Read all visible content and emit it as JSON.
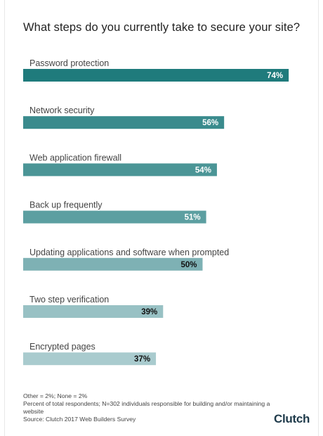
{
  "title": "What steps do you currently take to secure your site?",
  "chart_data": {
    "type": "bar",
    "orientation": "horizontal",
    "title": "What steps do you currently take to secure your site?",
    "categories": [
      "Password protection",
      "Network security",
      "Web application firewall",
      "Back up frequently",
      "Updating applications and software when prompted",
      "Two step verification",
      "Encrypted pages"
    ],
    "values": [
      74,
      56,
      54,
      51,
      50,
      39,
      37
    ],
    "value_labels": [
      "74%",
      "56%",
      "54%",
      "51%",
      "50%",
      "39%",
      "37%"
    ],
    "unit": "%",
    "xlim": [
      0,
      100
    ],
    "grid": false,
    "legend": "none",
    "colors": [
      "#1f7b7c",
      "#3a8b8d",
      "#4b9596",
      "#5c9fa1",
      "#7eb1b4",
      "#98c1c4",
      "#a9cbce"
    ],
    "label_colors": [
      "#ffffff",
      "#ffffff",
      "#ffffff",
      "#ffffff",
      "#111111",
      "#111111",
      "#111111"
    ]
  },
  "footnotes": [
    "Other = 2%; None = 2%",
    "Percent of total respondents; N=302 individuals responsible for building and/or maintaining a website",
    "Source: Clutch 2017 Web Builders Survey"
  ],
  "logo": {
    "text_main": "Clutch",
    "accent_color": "#e8473d"
  }
}
